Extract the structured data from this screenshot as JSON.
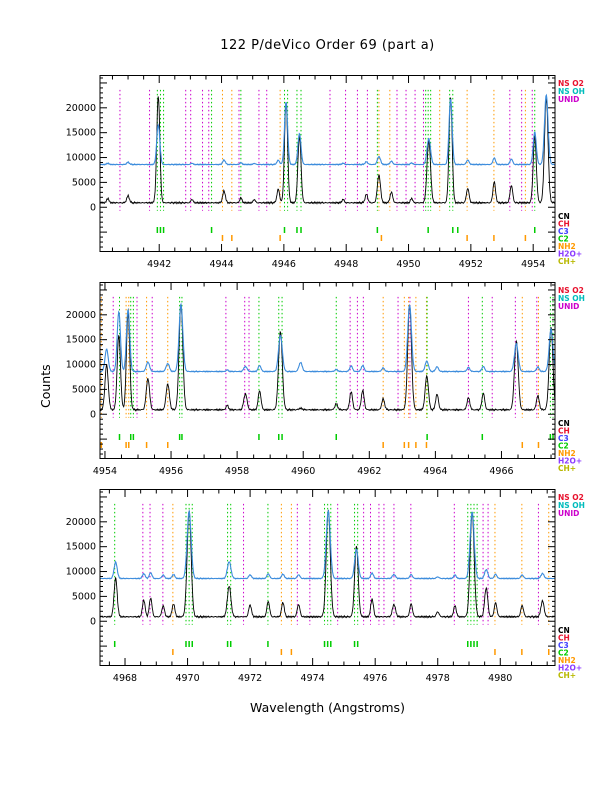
{
  "title": "122 P/deVico Order 69 (part a)",
  "xlabel": "Wavelength (Angstroms)",
  "ylabel": "Counts",
  "colors": {
    "black_spectrum": "#000000",
    "blue_spectrum": "#3c8cdc",
    "ns_o2": "#e8112d",
    "ns_oh": "#00bcbc",
    "unid": "#cc00cc",
    "cn": "#000000",
    "ch": "#e8112d",
    "c3": "#4040ff",
    "c2": "#00cc00",
    "nh2": "#ff9900",
    "h2o_plus": "#8c3cff",
    "ch_plus": "#b8b800"
  },
  "legend_top": [
    {
      "label": "NS O2",
      "color_key": "ns_o2"
    },
    {
      "label": "NS OH",
      "color_key": "ns_oh"
    },
    {
      "label": "UNID",
      "color_key": "unid"
    }
  ],
  "legend_species": [
    {
      "label": "CN",
      "color_key": "cn"
    },
    {
      "label": "CH",
      "color_key": "ch"
    },
    {
      "label": "C3",
      "color_key": "c3"
    },
    {
      "label": "C2",
      "color_key": "c2"
    },
    {
      "label": "NH2",
      "color_key": "nh2"
    },
    {
      "label": "H2O+",
      "color_key": "h2o_plus"
    },
    {
      "label": "CH+",
      "color_key": "ch_plus"
    }
  ],
  "chart_data": [
    {
      "type": "line",
      "panel": 1,
      "xlim": [
        4940.1,
        4954.7
      ],
      "xticks": [
        4942,
        4944,
        4946,
        4948,
        4950,
        4952,
        4954
      ],
      "ylim": [
        -9000,
        26600
      ],
      "yticks": [
        0,
        5000,
        10000,
        15000,
        20000
      ],
      "spectra": {
        "black": {
          "baseline": 900,
          "noise": 200
        },
        "blue": {
          "baseline": 8600,
          "noise": 110
        }
      },
      "peaks": [
        [
          4940.35,
          900,
          0.05,
          250
        ],
        [
          4941.0,
          1400,
          0.06,
          450
        ],
        [
          4941.97,
          21500,
          0.07,
          8000
        ],
        [
          4943.05,
          700,
          0.05,
          250
        ],
        [
          4944.08,
          2400,
          0.06,
          900
        ],
        [
          4944.62,
          1000,
          0.05,
          350
        ],
        [
          4945.05,
          650,
          0.05,
          220
        ],
        [
          4945.82,
          2700,
          0.06,
          850
        ],
        [
          4946.07,
          20300,
          0.07,
          12600
        ],
        [
          4946.5,
          13500,
          0.07,
          6200
        ],
        [
          4947.9,
          700,
          0.05,
          260
        ],
        [
          4948.65,
          1700,
          0.06,
          550
        ],
        [
          4949.05,
          5600,
          0.07,
          1600
        ],
        [
          4949.45,
          2100,
          0.06,
          650
        ],
        [
          4950.1,
          900,
          0.05,
          320
        ],
        [
          4950.65,
          12500,
          0.08,
          5200
        ],
        [
          4951.35,
          21200,
          0.07,
          13200
        ],
        [
          4951.9,
          2900,
          0.06,
          900
        ],
        [
          4952.75,
          4200,
          0.06,
          1300
        ],
        [
          4953.3,
          3500,
          0.06,
          1100
        ],
        [
          4954.05,
          13500,
          0.07,
          6500
        ],
        [
          4954.42,
          21000,
          0.08,
          14000
        ]
      ],
      "marker_lines": {
        "unid": [
          4940.74,
          4941.69,
          4942.85,
          4943.01,
          4943.39,
          4943.59,
          4944.56,
          4945.2,
          4945.45,
          4947.48,
          4947.98,
          4948.36,
          4948.68,
          4949.63,
          4949.92,
          4950.21,
          4950.48,
          4953.25,
          4953.63,
          4953.97
        ],
        "nh2": [
          4944.03,
          4944.33,
          4945.88,
          4949.05,
          4949.4,
          4951.0,
          4951.88,
          4952.74,
          4953.75
        ],
        "c2": [
          4941.94,
          4942.04,
          4942.14,
          4943.68,
          4944.62,
          4946.02,
          4946.12,
          4946.42,
          4946.55,
          4949.0,
          4950.55,
          4950.63,
          4950.71,
          4951.32,
          4951.42,
          4954.05
        ]
      },
      "species_ticks": {
        "c2": [
          4941.94,
          4942.04,
          4942.14,
          4943.68,
          4946.02,
          4946.42,
          4946.55,
          4949.0,
          4950.63,
          4951.42,
          4951.58,
          4954.05
        ],
        "nh2": [
          4944.03,
          4944.33,
          4945.88,
          4949.13,
          4951.88,
          4952.74,
          4953.75
        ]
      }
    },
    {
      "type": "line",
      "panel": 2,
      "xlim": [
        4953.85,
        4967.62
      ],
      "xticks": [
        4954,
        4956,
        4958,
        4960,
        4962,
        4964,
        4966
      ],
      "ylim": [
        -9000,
        26600
      ],
      "yticks": [
        0,
        5000,
        10000,
        15000,
        20000
      ],
      "spectra": {
        "black": {
          "baseline": 900,
          "noise": 200
        },
        "blue": {
          "baseline": 8600,
          "noise": 110
        }
      },
      "peaks": [
        [
          4954.05,
          9000,
          0.07,
          4500
        ],
        [
          4954.42,
          15000,
          0.07,
          12000
        ],
        [
          4954.7,
          19500,
          0.07,
          12500
        ],
        [
          4955.3,
          6300,
          0.07,
          1900
        ],
        [
          4955.9,
          5200,
          0.07,
          1600
        ],
        [
          4956.3,
          21300,
          0.08,
          13500
        ],
        [
          4957.7,
          900,
          0.05,
          300
        ],
        [
          4958.25,
          3200,
          0.07,
          1000
        ],
        [
          4958.68,
          3800,
          0.06,
          1200
        ],
        [
          4959.31,
          15800,
          0.08,
          7300
        ],
        [
          4959.92,
          300,
          0.07,
          1800
        ],
        [
          4961.0,
          1200,
          0.06,
          400
        ],
        [
          4961.45,
          3600,
          0.06,
          1100
        ],
        [
          4961.8,
          3900,
          0.06,
          1200
        ],
        [
          4962.42,
          2200,
          0.06,
          700
        ],
        [
          4963.22,
          21200,
          0.08,
          13400
        ],
        [
          4963.74,
          6800,
          0.07,
          2100
        ],
        [
          4964.05,
          3100,
          0.06,
          950
        ],
        [
          4965.0,
          2400,
          0.06,
          800
        ],
        [
          4965.45,
          3300,
          0.06,
          1000
        ],
        [
          4966.45,
          13800,
          0.08,
          5600
        ],
        [
          4967.1,
          2800,
          0.06,
          900
        ],
        [
          4967.5,
          16500,
          0.08,
          8500
        ]
      ],
      "marker_lines": {
        "unid": [
          4954.25,
          4954.97,
          4955.43,
          4957.66,
          4958.23,
          4958.36,
          4961.42,
          4961.64,
          4961.82,
          4962.87,
          4963.23,
          4965.0,
          4965.72,
          4966.42,
          4967.07
        ],
        "nh2": [
          4953.89,
          4954.64,
          4954.72,
          4955.26,
          4955.9,
          4962.42,
          4963.06,
          4963.19,
          4963.41,
          4963.73,
          4966.63,
          4967.12
        ],
        "c2": [
          4954.44,
          4954.78,
          4954.86,
          4956.26,
          4956.33,
          4958.66,
          4959.26,
          4959.36,
          4961.0,
          4963.75,
          4965.42,
          4967.48,
          4967.56
        ]
      },
      "species_ticks": {
        "c2": [
          4954.44,
          4954.78,
          4954.86,
          4956.26,
          4956.33,
          4958.66,
          4959.26,
          4959.36,
          4961.0,
          4963.75,
          4965.42,
          4967.48,
          4967.56
        ],
        "nh2": [
          4953.89,
          4954.64,
          4954.72,
          4955.26,
          4955.9,
          4962.42,
          4963.06,
          4963.19,
          4963.41,
          4963.73,
          4966.63,
          4967.12
        ]
      }
    },
    {
      "type": "line",
      "panel": 3,
      "xlim": [
        4967.2,
        4981.75
      ],
      "xticks": [
        4968,
        4970,
        4972,
        4974,
        4976,
        4978,
        4980
      ],
      "ylim": [
        -9000,
        26600
      ],
      "yticks": [
        0,
        5000,
        10000,
        15000,
        20000
      ],
      "spectra": {
        "black": {
          "baseline": 900,
          "noise": 200
        },
        "blue": {
          "baseline": 8600,
          "noise": 110
        }
      },
      "peaks": [
        [
          4967.7,
          7800,
          0.07,
          3300
        ],
        [
          4968.6,
          3400,
          0.06,
          1000
        ],
        [
          4968.82,
          3800,
          0.06,
          1150
        ],
        [
          4969.22,
          2200,
          0.06,
          700
        ],
        [
          4969.55,
          2600,
          0.06,
          800
        ],
        [
          4970.05,
          21300,
          0.09,
          13500
        ],
        [
          4971.33,
          6200,
          0.08,
          3400
        ],
        [
          4972.0,
          2400,
          0.06,
          750
        ],
        [
          4972.58,
          3100,
          0.06,
          950
        ],
        [
          4973.05,
          2900,
          0.06,
          880
        ],
        [
          4973.55,
          2500,
          0.06,
          760
        ],
        [
          4974.5,
          21500,
          0.09,
          13600
        ],
        [
          4975.4,
          14200,
          0.08,
          5900
        ],
        [
          4975.9,
          3600,
          0.06,
          1100
        ],
        [
          4976.6,
          2500,
          0.07,
          800
        ],
        [
          4977.15,
          2600,
          0.06,
          800
        ],
        [
          4978.0,
          1000,
          0.06,
          320
        ],
        [
          4978.55,
          2200,
          0.06,
          700
        ],
        [
          4979.1,
          21000,
          0.09,
          13400
        ],
        [
          4979.55,
          5800,
          0.07,
          1800
        ],
        [
          4979.85,
          2800,
          0.06,
          850
        ],
        [
          4980.7,
          2300,
          0.06,
          720
        ],
        [
          4981.35,
          3200,
          0.07,
          1000
        ]
      ],
      "marker_lines": {
        "unid": [
          4968.57,
          4968.8,
          4969.21,
          4971.79,
          4973.51,
          4973.91,
          4974.8,
          4975.63,
          4975.85,
          4976.12,
          4976.28,
          4976.6,
          4977.14,
          4978.53,
          4979.45,
          4979.61,
          4981.22
        ],
        "nh2": [
          4969.53,
          4973.0,
          4973.32,
          4979.83,
          4980.69,
          4981.55
        ],
        "c2": [
          4967.67,
          4969.95,
          4970.05,
          4970.15,
          4971.28,
          4971.38,
          4972.57,
          4974.38,
          4974.48,
          4974.58,
          4975.34,
          4975.44,
          4978.96,
          4979.06,
          4979.16,
          4979.26
        ]
      },
      "species_ticks": {
        "c2": [
          4967.67,
          4969.95,
          4970.05,
          4970.15,
          4971.28,
          4971.38,
          4972.57,
          4974.38,
          4974.48,
          4974.58,
          4975.34,
          4975.44,
          4978.96,
          4979.06,
          4979.16,
          4979.26
        ],
        "nh2": [
          4969.53,
          4973.0,
          4973.32,
          4979.83,
          4980.69,
          4981.55
        ]
      }
    }
  ]
}
